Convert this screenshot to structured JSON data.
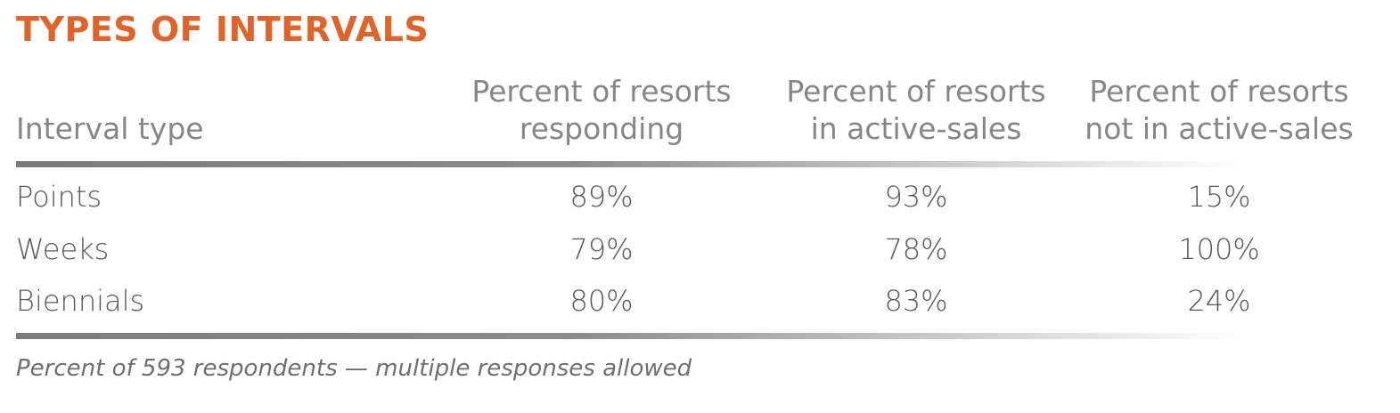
{
  "title": "TYPES OF INTERVALS",
  "columns": {
    "label": "Interval type",
    "col1": [
      "Percent of resorts",
      "responding"
    ],
    "col2": [
      "Percent of resorts",
      "in active-sales"
    ],
    "col3": [
      "Percent of resorts",
      "not in active-sales"
    ]
  },
  "rows": [
    {
      "label": "Points",
      "values": [
        "89%",
        "93%",
        "15%"
      ]
    },
    {
      "label": "Weeks",
      "values": [
        "79%",
        "78%",
        "100%"
      ]
    },
    {
      "label": "Biennials",
      "values": [
        "80%",
        "83%",
        "24%"
      ]
    }
  ],
  "note": "Percent of 593 respondents — multiple responses allowed",
  "colors": {
    "title": "#e0642a",
    "header_text": "#85868a",
    "body_text": "#58595b",
    "rule": "#7a7b7f"
  }
}
